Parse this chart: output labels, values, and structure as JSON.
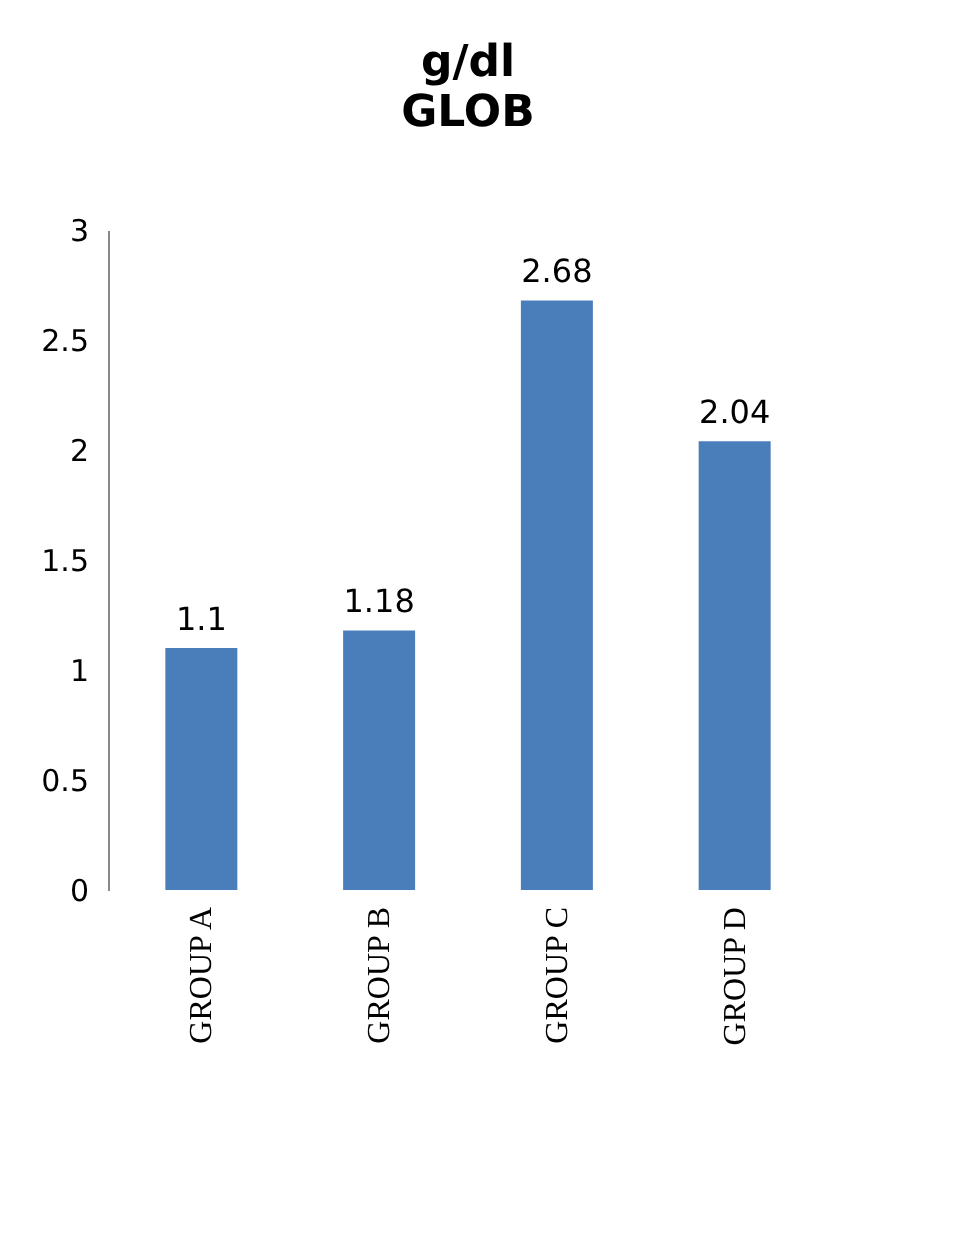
{
  "chart_data": {
    "type": "bar",
    "title": "g/dl",
    "subtitle": "GLOB",
    "categories": [
      "GROUP A",
      "GROUP B",
      "GROUP C",
      "GROUP D"
    ],
    "values": [
      1.1,
      1.18,
      2.68,
      2.04
    ],
    "color": "#4a7ebb",
    "ylim": [
      0,
      3
    ],
    "yticks": [
      0,
      0.5,
      1,
      1.5,
      2,
      2.5,
      3
    ],
    "grid": false,
    "data_labels": true
  }
}
